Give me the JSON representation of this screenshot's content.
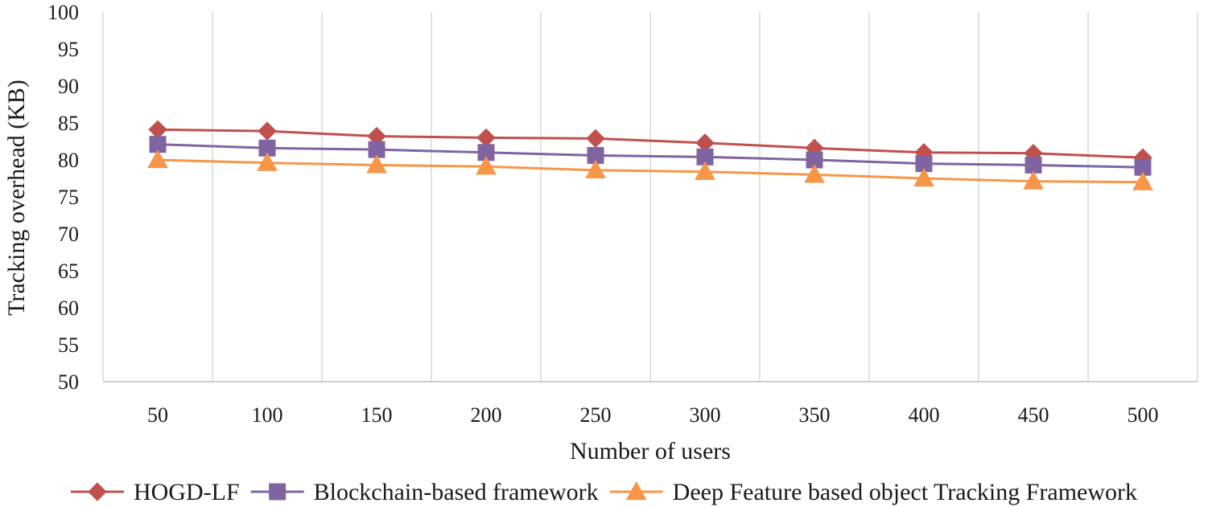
{
  "chart_data": {
    "type": "line",
    "xlabel": "Number of users",
    "ylabel": "Tracking overhead (KB)",
    "categories": [
      "50",
      "100",
      "150",
      "200",
      "250",
      "300",
      "350",
      "400",
      "450",
      "500"
    ],
    "ylim": [
      50,
      100
    ],
    "yticks": [
      50,
      55,
      60,
      65,
      70,
      75,
      80,
      85,
      90,
      95,
      100
    ],
    "grid": "vertical",
    "legend_position": "bottom",
    "series": [
      {
        "name": "HOGD-LF",
        "color": "#c0504d",
        "marker": "diamond",
        "values": [
          84.1,
          83.9,
          83.2,
          83.0,
          82.9,
          82.3,
          81.6,
          81.0,
          80.9,
          80.3
        ]
      },
      {
        "name": "Blockchain-based framework",
        "color": "#8064a2",
        "marker": "square",
        "values": [
          82.1,
          81.6,
          81.4,
          81.0,
          80.6,
          80.4,
          80.0,
          79.5,
          79.3,
          79.0
        ]
      },
      {
        "name": "Deep Feature based object Tracking Framework",
        "color": "#f79646",
        "marker": "triangle",
        "values": [
          80.0,
          79.6,
          79.3,
          79.1,
          78.6,
          78.4,
          78.0,
          77.5,
          77.1,
          77.0
        ]
      }
    ]
  }
}
